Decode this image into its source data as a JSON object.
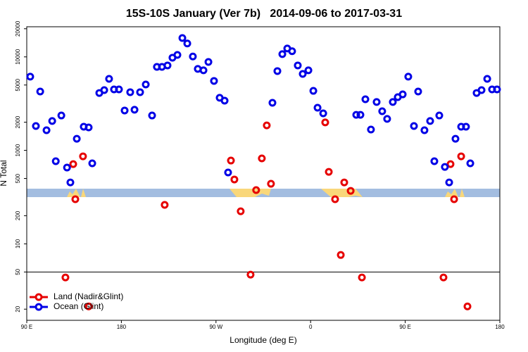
{
  "chart_data": {
    "type": "scatter",
    "title": "15S-10S January (Ver 7b)   2014-09-06 to 2017-03-31",
    "x_label": "Longitude (deg E)",
    "y_label": "N Total",
    "log_y": true,
    "xlim": [
      90,
      540
    ],
    "ylim": [
      15.2,
      21000
    ],
    "xticks": [
      {
        "value": 90,
        "label": "90 E"
      },
      180,
      {
        "value": 270,
        "label": "90 W"
      },
      {
        "value": 360,
        "label": "0"
      },
      {
        "value": 450,
        "label": "90 E"
      },
      {
        "value": 540,
        "label": "180"
      }
    ],
    "yticks": [
      20,
      50,
      100,
      200,
      500,
      1000,
      2000,
      5000,
      10000,
      20000
    ],
    "hline": 50,
    "legend": "lower left",
    "series": [
      {
        "name": "Land (Nadir&Glint)",
        "color": "#e60000",
        "x": [
          126.8,
          134.2,
          136.2,
          143.5,
          148.9,
          221.2,
          284.2,
          287.5,
          293.5,
          302.9,
          308.2,
          313.6,
          318.3,
          322.3,
          373.9,
          377.3,
          383.3,
          388.7,
          392.0,
          398.1,
          408.8,
          486.4,
          493.1,
          496.5,
          503.2,
          509.2
        ],
        "values": [
          43.7,
          713,
          300,
          863,
          21.4,
          261,
          778,
          488,
          223,
          46.8,
          376,
          820,
          1850,
          439,
          1990,
          589,
          300,
          76,
          454,
          369,
          43.7,
          43.7,
          713,
          300,
          863,
          21.4
        ]
      },
      {
        "name": "Ocean (Glint)",
        "color": "#0000e6",
        "x": [
          93.3,
          98.7,
          102.8,
          108.8,
          114.2,
          117.6,
          122.9,
          128.3,
          131.5,
          137.6,
          144.2,
          148.9,
          152.3,
          159.0,
          163.7,
          168.3,
          173.0,
          177.7,
          183.1,
          188.4,
          192.5,
          197.8,
          203.2,
          209.2,
          213.8,
          218.6,
          223.9,
          228.6,
          233.3,
          238.0,
          242.7,
          248.0,
          252.7,
          258.1,
          262.8,
          268.1,
          273.5,
          278.2,
          281.5,
          323.7,
          328.4,
          333.1,
          337.8,
          342.4,
          347.8,
          352.5,
          357.9,
          362.6,
          366.6,
          372.0,
          403.4,
          407.4,
          412.1,
          417.4,
          422.8,
          428.1,
          432.8,
          438.2,
          442.9,
          447.6,
          452.9,
          458.3,
          462.3,
          468.3,
          473.7,
          477.7,
          482.4,
          487.7,
          491.8,
          497.8,
          503.2,
          507.8,
          511.9,
          517.9,
          522.6,
          528.0,
          532.6,
          537.3
        ],
        "values": [
          6140,
          1820,
          4260,
          1640,
          2060,
          765,
          2360,
          655,
          454,
          1330,
          1790,
          1760,
          726,
          4110,
          4410,
          5820,
          4490,
          4490,
          2670,
          4190,
          2720,
          4190,
          5070,
          2360,
          7820,
          7820,
          8100,
          9800,
          10500,
          15900,
          13900,
          10100,
          7430,
          7180,
          8830,
          5530,
          3650,
          3400,
          580,
          3230,
          7050,
          10700,
          12300,
          11500,
          8100,
          6570,
          7180,
          4330,
          2860,
          2490,
          2400,
          2400,
          3520,
          1670,
          3290,
          2620,
          2170,
          3290,
          3710,
          3970,
          6140,
          1820,
          4260,
          1640,
          2060,
          765,
          2360,
          665,
          454,
          1330,
          1790,
          1790,
          726,
          4110,
          4410,
          5820,
          4490,
          4490
        ]
      }
    ]
  }
}
